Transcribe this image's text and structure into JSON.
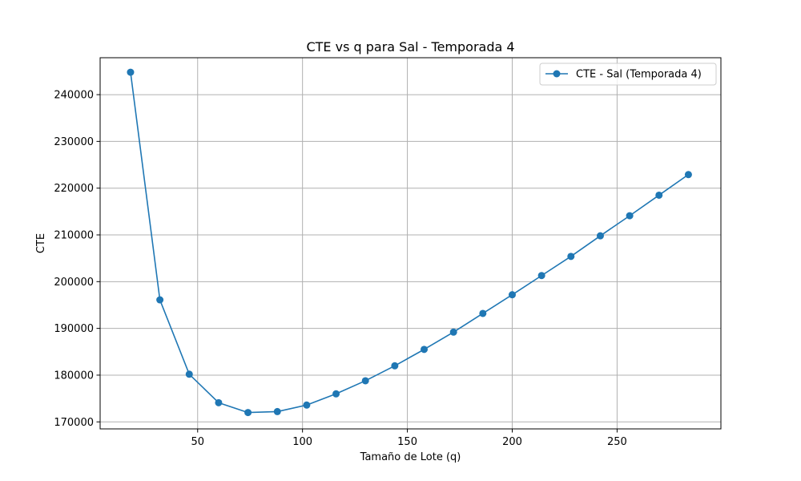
{
  "chart_data": {
    "type": "line",
    "title": "CTE vs q para Sal - Temporada 4",
    "xlabel": "Tamaño de Lote (q)",
    "ylabel": "CTE",
    "xlim": [
      3.5,
      299.5
    ],
    "ylim": [
      168500,
      247900
    ],
    "xticks": [
      50,
      100,
      150,
      200,
      250
    ],
    "yticks": [
      170000,
      180000,
      190000,
      200000,
      210000,
      220000,
      230000,
      240000
    ],
    "grid": true,
    "legend_position": "top-right",
    "color": "#1f77b4",
    "series": [
      {
        "name": "CTE - Sal (Temporada 4)",
        "marker": "circle",
        "x": [
          18,
          32,
          46,
          60,
          74,
          88,
          102,
          116,
          130,
          144,
          158,
          172,
          186,
          200,
          214,
          228,
          242,
          256,
          270,
          284
        ],
        "y": [
          244800,
          196100,
          180200,
          174100,
          172000,
          172200,
          173600,
          176000,
          178800,
          182000,
          185500,
          189200,
          193200,
          197200,
          201300,
          205400,
          209800,
          214100,
          218500,
          222900
        ]
      }
    ]
  }
}
